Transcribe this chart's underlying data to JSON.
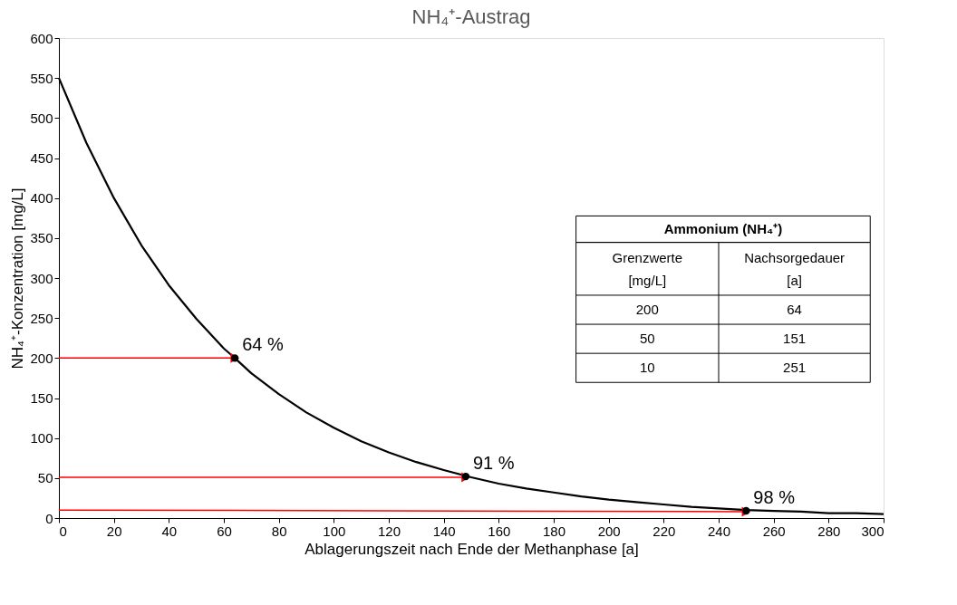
{
  "chart_data": {
    "type": "line",
    "title": "NH₄⁺-Austrag",
    "xlabel": "Ablagerungszeit nach Ende der Methanphase [a]",
    "ylabel": "NH₄⁺-Konzentration [mg/L]",
    "xlim": [
      0,
      300
    ],
    "xticks": [
      0,
      20,
      40,
      60,
      80,
      100,
      120,
      140,
      160,
      180,
      200,
      220,
      240,
      260,
      280,
      300
    ],
    "ylim": [
      0,
      600
    ],
    "yticks": [
      0,
      50,
      100,
      150,
      200,
      250,
      300,
      350,
      400,
      450,
      500,
      550,
      600
    ],
    "grid": false,
    "series": [
      {
        "type": "line",
        "color": "#000000",
        "marker": "none",
        "x": [
          0,
          10,
          20,
          30,
          40,
          50,
          60,
          64,
          70,
          80,
          90,
          100,
          110,
          120,
          130,
          140,
          150,
          160,
          170,
          180,
          190,
          200,
          210,
          220,
          230,
          240,
          250,
          260,
          270,
          280,
          290,
          300
        ],
        "values": [
          550,
          469,
          400,
          341,
          291,
          249,
          212,
          200,
          181,
          155,
          132,
          113,
          96,
          82,
          70,
          60,
          51,
          43,
          37,
          32,
          27,
          23,
          20,
          17,
          14,
          12,
          10,
          9,
          8,
          6,
          6,
          5
        ]
      },
      {
        "type": "line",
        "color": "#ff0000",
        "marker": "triangle",
        "x": [
          0,
          64
        ],
        "values": [
          200,
          200
        ]
      },
      {
        "type": "line",
        "color": "#ff0000",
        "marker": "triangle",
        "x": [
          0,
          148
        ],
        "values": [
          51,
          51
        ]
      },
      {
        "type": "line",
        "color": "#ff0000",
        "marker": "triangle",
        "x": [
          0,
          250
        ],
        "values": [
          10,
          8
        ]
      },
      {
        "type": "scatter",
        "color": "#000000",
        "marker": "circle",
        "x": [
          64,
          148,
          250
        ],
        "values": [
          200,
          52,
          9
        ]
      }
    ],
    "annotations": [
      {
        "text": "64 %",
        "x": 64,
        "y": 200
      },
      {
        "text": "91 %",
        "x": 148,
        "y": 52
      },
      {
        "text": "98 %",
        "x": 250,
        "y": 9
      },
      "Ammonium (NH₄⁺)",
      "Grenzwerte",
      "[mg/L]",
      "Nachsorgedauer",
      "[a]",
      "200",
      "64",
      "50",
      "151",
      "10",
      "251"
    ]
  }
}
